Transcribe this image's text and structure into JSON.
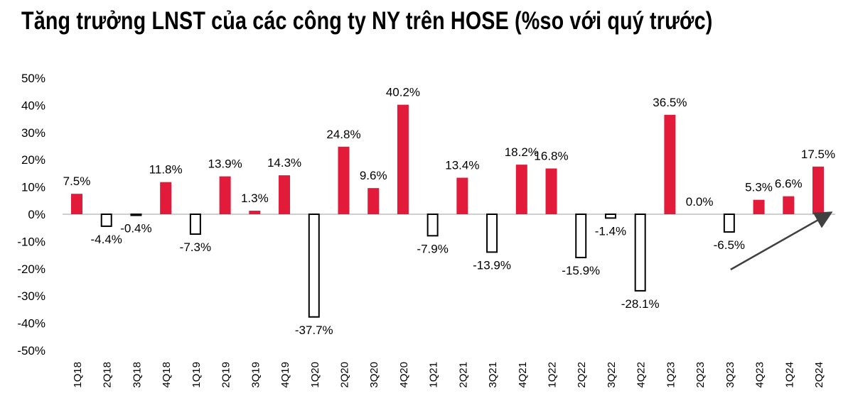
{
  "chart_data": {
    "type": "bar",
    "title": "Tăng trưởng LNST của các công ty NY trên HOSE (%so với quý trước)",
    "xlabel": "",
    "ylabel": "",
    "ylim": [
      -50,
      50
    ],
    "yticks": [
      "50%",
      "40%",
      "30%",
      "20%",
      "10%",
      "0%",
      "-10%",
      "-20%",
      "-30%",
      "-40%",
      "-50%"
    ],
    "ytick_values": [
      50,
      40,
      30,
      20,
      10,
      0,
      -10,
      -20,
      -30,
      -40,
      -50
    ],
    "grid": false,
    "legend": "none",
    "categories": [
      "1Q18",
      "2Q18",
      "3Q18",
      "4Q18",
      "1Q19",
      "2Q19",
      "3Q19",
      "4Q19",
      "1Q20",
      "2Q20",
      "3Q20",
      "4Q20",
      "1Q21",
      "2Q21",
      "3Q21",
      "4Q21",
      "1Q22",
      "2Q22",
      "3Q22",
      "4Q22",
      "1Q23",
      "2Q23",
      "3Q23",
      "4Q23",
      "1Q24",
      "2Q24"
    ],
    "values": [
      7.5,
      -4.4,
      -0.4,
      11.8,
      -7.3,
      13.9,
      1.3,
      14.3,
      -37.7,
      24.8,
      9.6,
      40.2,
      -7.9,
      13.4,
      -13.9,
      18.2,
      16.8,
      -15.9,
      -1.4,
      -28.1,
      36.5,
      0.0,
      -6.5,
      5.3,
      6.6,
      17.5
    ],
    "data_labels": [
      "7.5%",
      "-4.4%",
      "-0.4%",
      "11.8%",
      "-7.3%",
      "13.9%",
      "1.3%",
      "14.3%",
      "-37.7%",
      "24.8%",
      "9.6%",
      "40.2%",
      "-7.9%",
      "13.4%",
      "-13.9%",
      "18.2%",
      "16.8%",
      "-15.9%",
      "-1.4%",
      "-28.1%",
      "36.5%",
      "0.0%",
      "-6.5%",
      "5.3%",
      "6.6%",
      "17.5%"
    ],
    "colors": {
      "positive": "#e31b3a",
      "negative_fill": "#ffffff",
      "negative_stroke": "#000000",
      "zero_line": "#bfbfbf",
      "arrow": "#404040"
    },
    "annotations": [
      {
        "type": "arrow",
        "from_category": "3Q23",
        "to_category": "2Q24",
        "note": "upward trend arrow"
      }
    ]
  }
}
